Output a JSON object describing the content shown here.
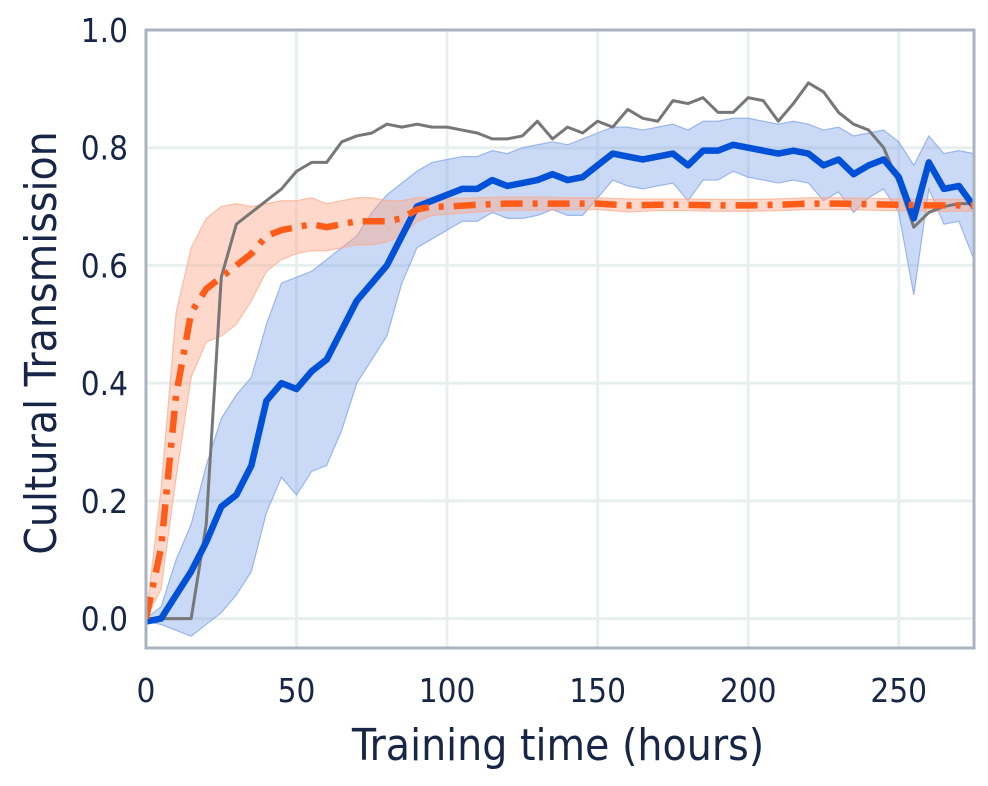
{
  "chart_data": {
    "type": "line",
    "title": "",
    "xlabel": "Training time (hours)",
    "ylabel": "Cultural Transmission",
    "xlim": [
      0,
      275
    ],
    "ylim": [
      -0.05,
      1.0
    ],
    "x_ticks": [
      "0",
      "50",
      "100",
      "150",
      "200",
      "250"
    ],
    "y_ticks": [
      "0.0",
      "0.2",
      "0.4",
      "0.6",
      "0.8",
      "1.0"
    ],
    "grid": true,
    "legend": "none",
    "colors": {
      "blue": "#0050d8",
      "blue_band": "#7aa0e6",
      "orange": "#ff5c1a",
      "orange_band": "#fba98b",
      "gray": "#777777",
      "grid": "#e8f0ef",
      "frame": "#aab3c0",
      "text": "#172546"
    },
    "series": [
      {
        "style": "solid-thick",
        "color": "blue",
        "x": [
          0,
          5,
          10,
          15,
          20,
          25,
          30,
          35,
          40,
          45,
          50,
          55,
          60,
          65,
          70,
          75,
          80,
          85,
          90,
          95,
          100,
          105,
          110,
          115,
          120,
          125,
          130,
          135,
          140,
          145,
          150,
          155,
          160,
          165,
          170,
          175,
          180,
          185,
          190,
          195,
          200,
          205,
          210,
          215,
          220,
          225,
          230,
          235,
          240,
          245,
          250,
          255,
          260,
          265,
          270,
          275
        ],
        "y": [
          -0.005,
          0.0,
          0.04,
          0.08,
          0.13,
          0.19,
          0.21,
          0.26,
          0.37,
          0.4,
          0.39,
          0.42,
          0.44,
          0.49,
          0.54,
          0.57,
          0.6,
          0.65,
          0.7,
          0.71,
          0.72,
          0.73,
          0.73,
          0.745,
          0.735,
          0.74,
          0.745,
          0.755,
          0.745,
          0.75,
          0.77,
          0.79,
          0.785,
          0.78,
          0.785,
          0.79,
          0.77,
          0.795,
          0.795,
          0.805,
          0.8,
          0.795,
          0.79,
          0.795,
          0.79,
          0.77,
          0.78,
          0.755,
          0.77,
          0.78,
          0.75,
          0.68,
          0.775,
          0.73,
          0.735,
          0.7
        ],
        "upper": [
          0.0,
          0.02,
          0.1,
          0.16,
          0.26,
          0.34,
          0.38,
          0.41,
          0.5,
          0.57,
          0.58,
          0.59,
          0.61,
          0.63,
          0.65,
          0.69,
          0.72,
          0.74,
          0.76,
          0.775,
          0.78,
          0.785,
          0.785,
          0.795,
          0.79,
          0.8,
          0.805,
          0.81,
          0.805,
          0.815,
          0.825,
          0.835,
          0.835,
          0.83,
          0.835,
          0.84,
          0.83,
          0.845,
          0.845,
          0.85,
          0.85,
          0.845,
          0.84,
          0.845,
          0.84,
          0.83,
          0.835,
          0.82,
          0.825,
          0.83,
          0.81,
          0.77,
          0.82,
          0.79,
          0.795,
          0.79
        ],
        "lower": [
          -0.005,
          -0.01,
          -0.02,
          -0.03,
          -0.01,
          0.01,
          0.04,
          0.08,
          0.18,
          0.24,
          0.21,
          0.25,
          0.26,
          0.32,
          0.4,
          0.44,
          0.48,
          0.57,
          0.63,
          0.645,
          0.66,
          0.675,
          0.675,
          0.69,
          0.68,
          0.68,
          0.685,
          0.695,
          0.685,
          0.685,
          0.715,
          0.745,
          0.735,
          0.73,
          0.735,
          0.74,
          0.71,
          0.745,
          0.745,
          0.76,
          0.75,
          0.745,
          0.74,
          0.745,
          0.74,
          0.71,
          0.725,
          0.69,
          0.715,
          0.73,
          0.69,
          0.55,
          0.73,
          0.67,
          0.675,
          0.61
        ]
      },
      {
        "style": "dash-dot-thick",
        "color": "orange",
        "x": [
          0,
          5,
          10,
          15,
          20,
          25,
          30,
          35,
          40,
          45,
          50,
          55,
          60,
          65,
          70,
          75,
          80,
          85,
          90,
          95,
          100,
          110,
          120,
          130,
          140,
          150,
          160,
          170,
          180,
          190,
          200,
          210,
          220,
          230,
          240,
          250,
          260,
          270,
          275
        ],
        "y": [
          0.0,
          0.12,
          0.38,
          0.52,
          0.56,
          0.58,
          0.6,
          0.62,
          0.65,
          0.66,
          0.665,
          0.67,
          0.665,
          0.67,
          0.675,
          0.675,
          0.675,
          0.68,
          0.695,
          0.7,
          0.7,
          0.703,
          0.705,
          0.705,
          0.705,
          0.705,
          0.702,
          0.703,
          0.703,
          0.702,
          0.702,
          0.703,
          0.705,
          0.705,
          0.704,
          0.703,
          0.702,
          0.702,
          0.702
        ],
        "upper": [
          0.0,
          0.22,
          0.52,
          0.63,
          0.68,
          0.7,
          0.705,
          0.7,
          0.705,
          0.71,
          0.71,
          0.715,
          0.705,
          0.71,
          0.715,
          0.715,
          0.71,
          0.71,
          0.715,
          0.715,
          0.713,
          0.715,
          0.716,
          0.716,
          0.715,
          0.715,
          0.713,
          0.713,
          0.713,
          0.712,
          0.712,
          0.713,
          0.715,
          0.715,
          0.714,
          0.713,
          0.712,
          0.712,
          0.712
        ],
        "lower": [
          0.0,
          0.05,
          0.24,
          0.41,
          0.47,
          0.48,
          0.5,
          0.54,
          0.59,
          0.61,
          0.62,
          0.625,
          0.625,
          0.63,
          0.635,
          0.635,
          0.64,
          0.65,
          0.675,
          0.685,
          0.687,
          0.691,
          0.694,
          0.694,
          0.695,
          0.695,
          0.691,
          0.693,
          0.693,
          0.692,
          0.692,
          0.693,
          0.695,
          0.695,
          0.694,
          0.693,
          0.692,
          0.692,
          0.692
        ]
      },
      {
        "style": "solid-thin",
        "color": "gray",
        "x": [
          0,
          5,
          10,
          15,
          20,
          25,
          30,
          35,
          40,
          45,
          50,
          55,
          60,
          65,
          70,
          75,
          80,
          85,
          90,
          95,
          100,
          105,
          110,
          115,
          120,
          125,
          130,
          135,
          140,
          145,
          150,
          155,
          160,
          165,
          170,
          175,
          180,
          185,
          190,
          195,
          200,
          205,
          210,
          215,
          220,
          225,
          230,
          235,
          240,
          245,
          250,
          255,
          260,
          265,
          270,
          275
        ],
        "y": [
          0.0,
          0.0,
          0.0,
          0.0,
          0.16,
          0.58,
          0.67,
          0.69,
          0.71,
          0.73,
          0.76,
          0.775,
          0.775,
          0.81,
          0.82,
          0.825,
          0.84,
          0.835,
          0.84,
          0.835,
          0.835,
          0.83,
          0.825,
          0.815,
          0.815,
          0.82,
          0.845,
          0.815,
          0.835,
          0.825,
          0.845,
          0.835,
          0.865,
          0.85,
          0.845,
          0.88,
          0.875,
          0.885,
          0.86,
          0.86,
          0.885,
          0.88,
          0.845,
          0.875,
          0.91,
          0.895,
          0.86,
          0.84,
          0.83,
          0.8,
          0.74,
          0.665,
          0.69,
          0.7,
          0.705,
          0.705
        ]
      }
    ]
  }
}
